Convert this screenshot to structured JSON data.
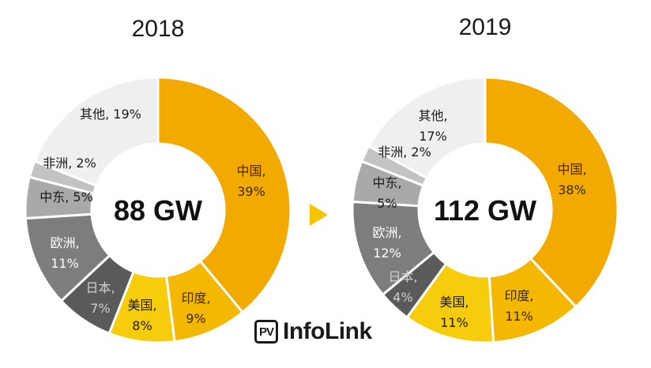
{
  "chart_data": [
    {
      "type": "pie",
      "title": "2018",
      "center_label": "88 GW",
      "slices": [
        {
          "name": "中国",
          "value": 39,
          "label": "39%",
          "color": "#f2a900"
        },
        {
          "name": "印度",
          "value": 9,
          "label": "9%",
          "color": "#f5b800"
        },
        {
          "name": "美国",
          "value": 8,
          "label": "8%",
          "color": "#f7cc0a"
        },
        {
          "name": "日本",
          "value": 7,
          "label": "7%",
          "color": "#5a5a5a"
        },
        {
          "name": "欧洲",
          "value": 11,
          "label": "11%",
          "color": "#7d7d7d"
        },
        {
          "name": "中东",
          "value": 5,
          "label": "5%",
          "color": "#a9a9a9"
        },
        {
          "name": "非洲",
          "value": 2,
          "label": "2%",
          "color": "#c3c3c3"
        },
        {
          "name": "其他",
          "value": 19,
          "label": "19%",
          "color": "#efefef"
        }
      ]
    },
    {
      "type": "pie",
      "title": "2019",
      "center_label": "112 GW",
      "slices": [
        {
          "name": "中国",
          "value": 38,
          "label": "38%",
          "color": "#f2a900"
        },
        {
          "name": "印度",
          "value": 11,
          "label": "11%",
          "color": "#f5b800"
        },
        {
          "name": "美国",
          "value": 11,
          "label": "11%",
          "color": "#f7cc0a"
        },
        {
          "name": "日本",
          "value": 4,
          "label": "4%",
          "color": "#5a5a5a"
        },
        {
          "name": "欧洲",
          "value": 12,
          "label": "12%",
          "color": "#7d7d7d"
        },
        {
          "name": "中东",
          "value": 5,
          "label": "5%",
          "color": "#a9a9a9"
        },
        {
          "name": "非洲",
          "value": 2,
          "label": "2%",
          "color": "#c3c3c3"
        },
        {
          "name": "其他",
          "value": 17,
          "label": "17%",
          "color": "#efefef"
        }
      ]
    }
  ],
  "arrow_color": "#f5c400",
  "logo": {
    "badge": "PV",
    "text": "InfoLink"
  }
}
